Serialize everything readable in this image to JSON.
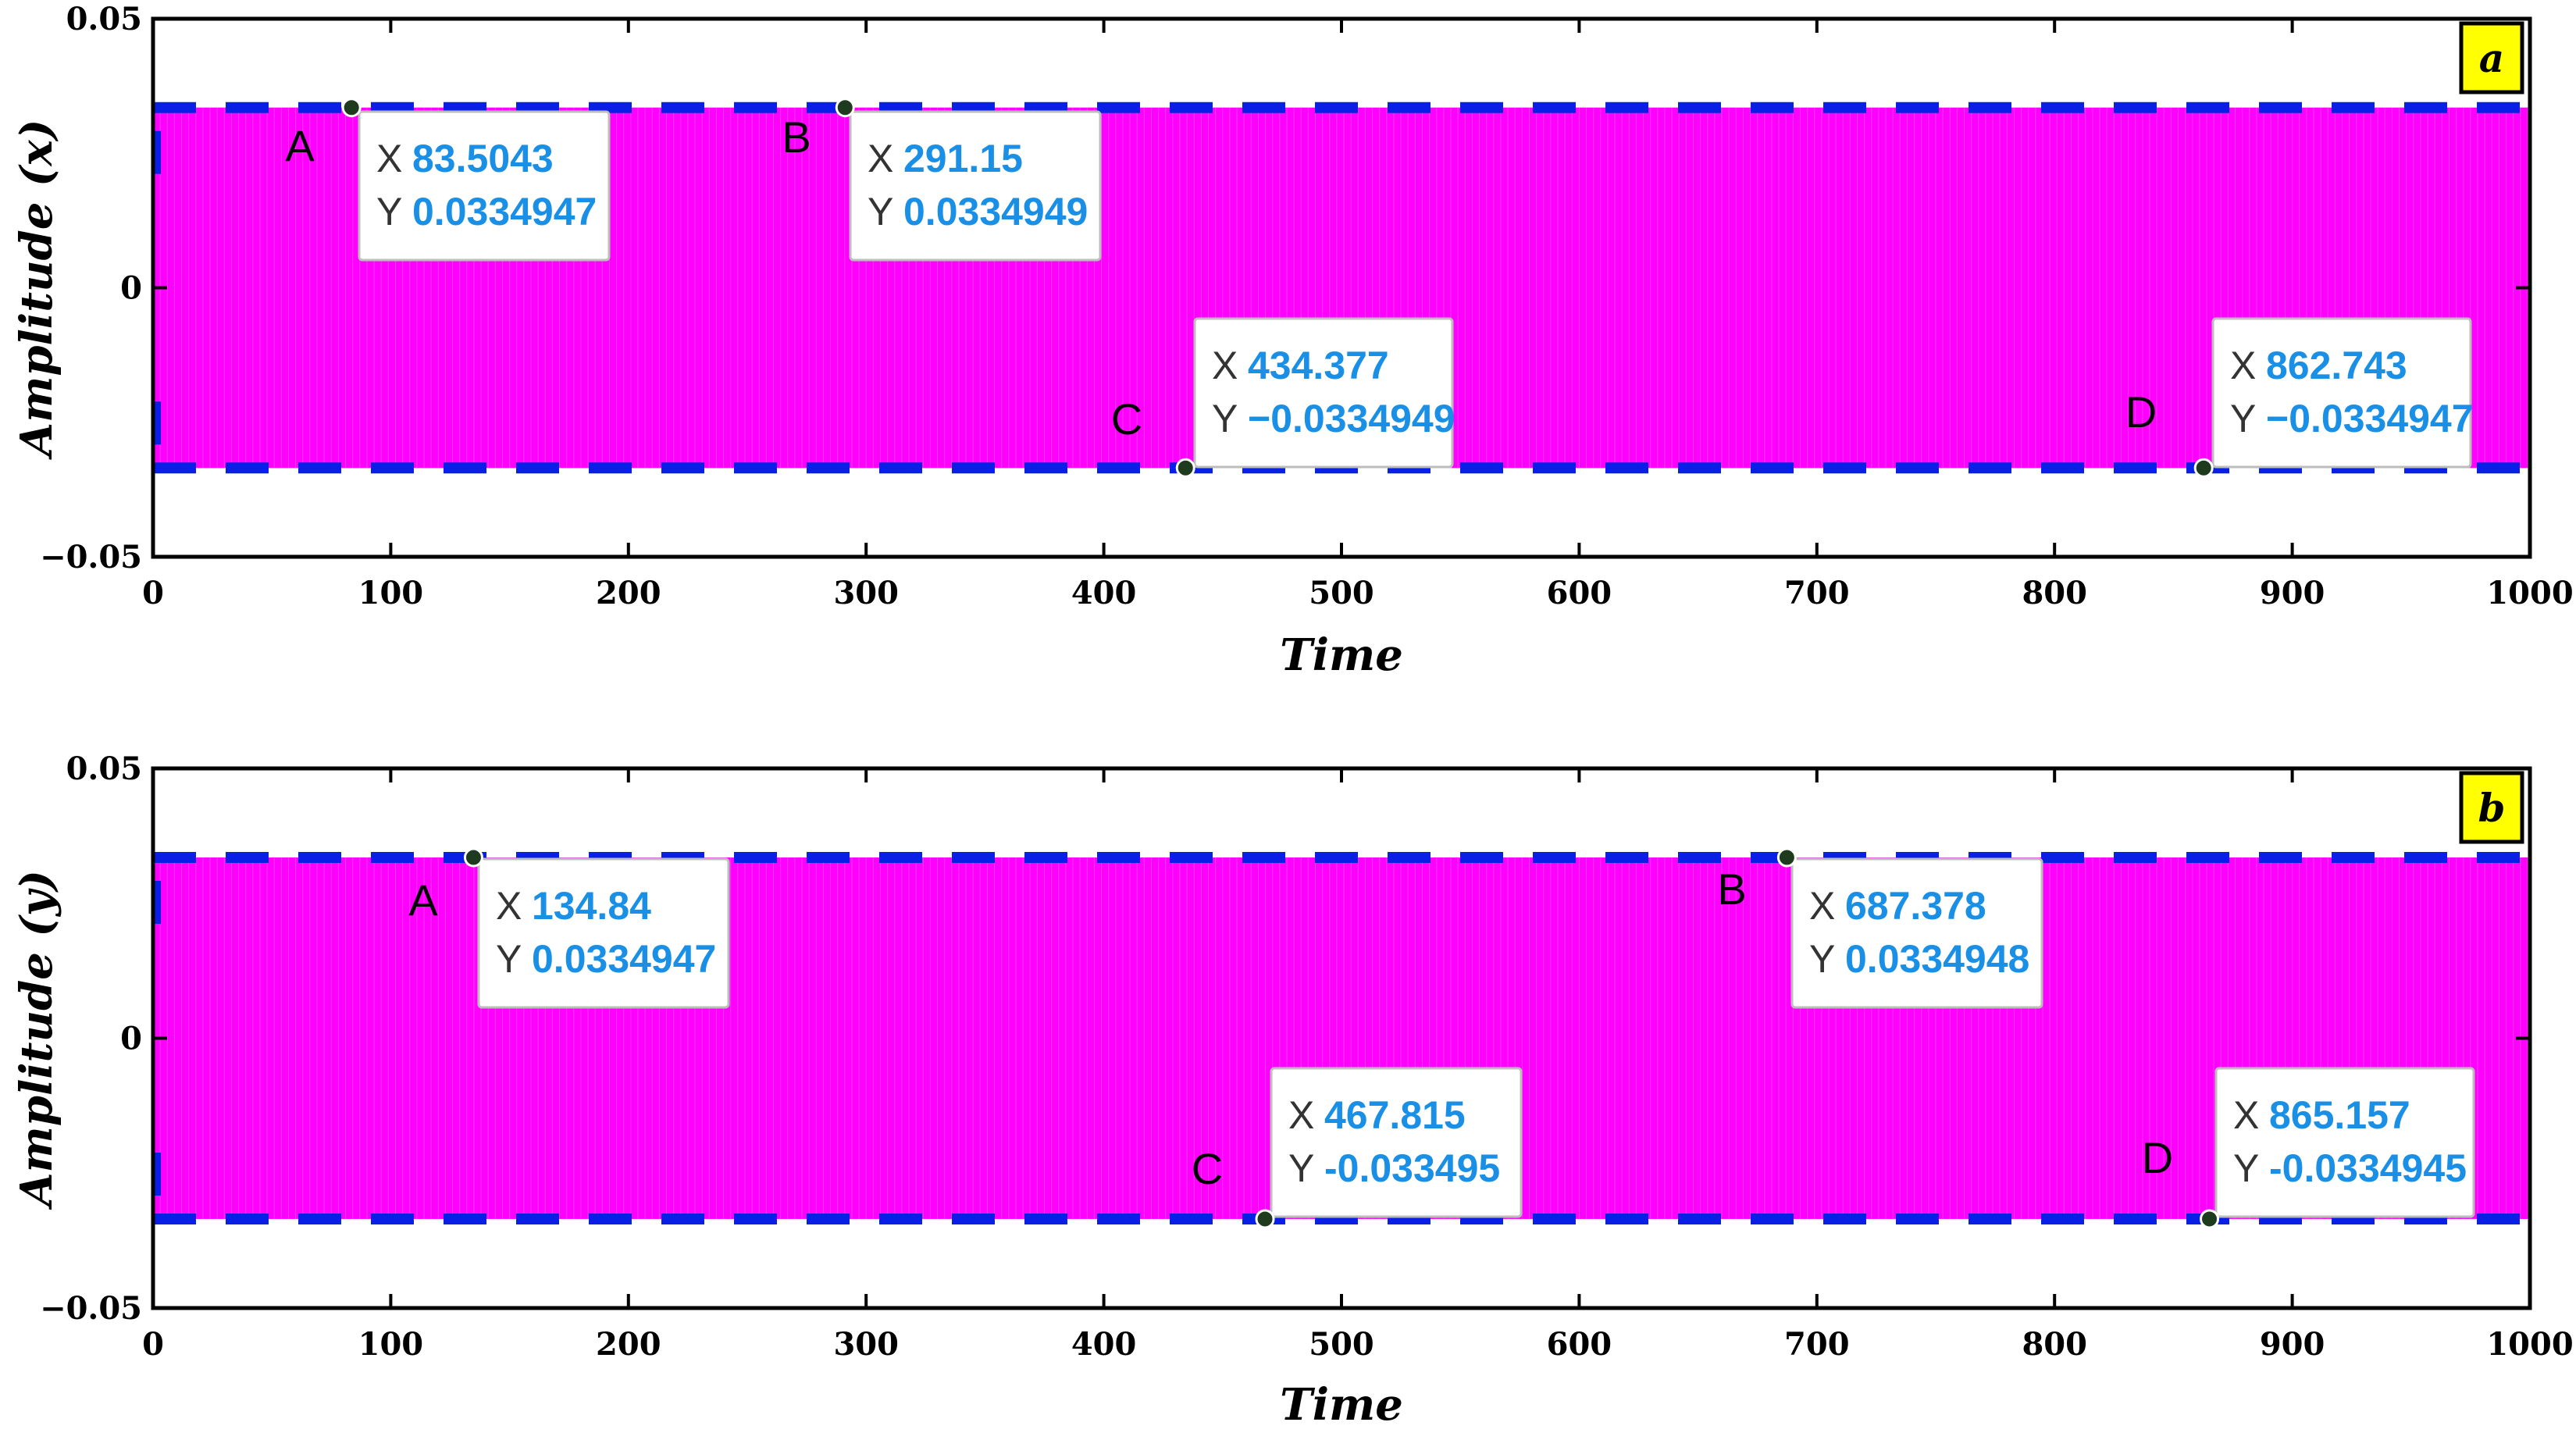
{
  "colors": {
    "signal": "#ff00ff",
    "envelope": "#0a1fe6",
    "tag_fill": "#ffff00",
    "tip_value": "#1a8fe6"
  },
  "chart_data": [
    {
      "type": "line",
      "panel": "a",
      "ylabel": "Amplitude (x)",
      "xlabel": "Time",
      "xlim": [
        0,
        1000
      ],
      "ylim": [
        -0.05,
        0.05
      ],
      "xticks": [
        0,
        100,
        200,
        300,
        400,
        500,
        600,
        700,
        800,
        900,
        1000
      ],
      "yticks": [
        "0.05",
        "0",
        "−0.05"
      ],
      "series": [
        {
          "style": "dense oscillation",
          "amplitude": 0.0334949,
          "x_range": [
            0,
            1000
          ]
        },
        {
          "style": "dashed envelope",
          "y": 0.0334949
        },
        {
          "style": "dashed envelope",
          "y": -0.0334949
        }
      ],
      "datatips": [
        {
          "label": "A",
          "x": "83.5043",
          "y": "0.0334947"
        },
        {
          "label": "B",
          "x": "291.15",
          "y": "0.0334949"
        },
        {
          "label": "C",
          "x": "434.377",
          "y": "−0.0334949"
        },
        {
          "label": "D",
          "x": "862.743",
          "y": "−0.0334947"
        }
      ]
    },
    {
      "type": "line",
      "panel": "b",
      "ylabel": "Amplitude (y)",
      "xlabel": "Time",
      "xlim": [
        0,
        1000
      ],
      "ylim": [
        -0.05,
        0.05
      ],
      "xticks": [
        0,
        100,
        200,
        300,
        400,
        500,
        600,
        700,
        800,
        900,
        1000
      ],
      "yticks": [
        "0.05",
        "0",
        "−0.05"
      ],
      "series": [
        {
          "style": "dense oscillation",
          "amplitude": 0.033495,
          "x_range": [
            0,
            1000
          ]
        },
        {
          "style": "dashed envelope",
          "y": 0.033495
        },
        {
          "style": "dashed envelope",
          "y": -0.033495
        }
      ],
      "datatips": [
        {
          "label": "A",
          "x": "134.84",
          "y": "0.0334947"
        },
        {
          "label": "B",
          "x": "687.378",
          "y": "0.0334948"
        },
        {
          "label": "C",
          "x": "467.815",
          "y": "-0.033495"
        },
        {
          "label": "D",
          "x": "865.157",
          "y": "-0.0334945"
        }
      ]
    }
  ]
}
